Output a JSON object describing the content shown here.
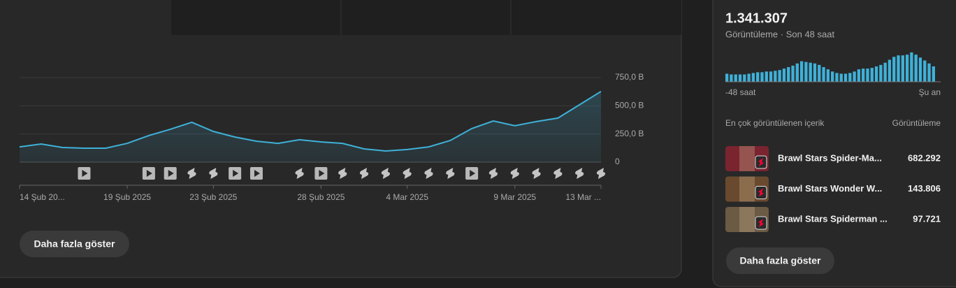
{
  "chart_data": {
    "type": "line",
    "categories": [
      "14 Şub 20...",
      null,
      null,
      null,
      null,
      "19 Şub 2025",
      null,
      null,
      null,
      "23 Şub 2025",
      null,
      null,
      null,
      null,
      "28 Şub 2025",
      null,
      null,
      null,
      "4 Mar 2025",
      null,
      null,
      null,
      null,
      "9 Mar 2025",
      null,
      null,
      null,
      "13 Mar ..."
    ],
    "values": [
      136,
      161,
      130,
      124,
      124,
      167,
      236,
      292,
      354,
      273,
      223,
      186,
      167,
      199,
      180,
      167,
      118,
      99,
      112,
      136,
      192,
      298,
      366,
      323,
      360,
      391,
      509,
      627
    ],
    "color": "#3fb1d9",
    "ylim": [
      0,
      750
    ],
    "yticks": [
      0,
      {
        "value": 250,
        "label": "250,0 B"
      },
      {
        "value": 500,
        "label": "500,0 B"
      },
      {
        "value": 750,
        "label": "750,0 B"
      }
    ],
    "grid": true,
    "uploads": [
      [
        3,
        "video"
      ],
      [
        6,
        "video"
      ],
      [
        7,
        "video"
      ],
      [
        8,
        "short"
      ],
      [
        9,
        "short"
      ],
      [
        10,
        "video"
      ],
      [
        11,
        "video"
      ],
      [
        13,
        "short"
      ],
      [
        14,
        "video"
      ],
      [
        15,
        "short"
      ],
      [
        16,
        "short"
      ],
      [
        17,
        "short"
      ],
      [
        18,
        "short"
      ],
      [
        19,
        "short"
      ],
      [
        20,
        "short"
      ],
      [
        21,
        "video"
      ],
      [
        22,
        "short"
      ],
      [
        23,
        "short"
      ],
      [
        24,
        "short"
      ],
      [
        25,
        "short"
      ],
      [
        26,
        "short"
      ],
      [
        27,
        "short"
      ]
    ]
  },
  "main_button": "Daha fazla göster",
  "sidebar": {
    "total": "1.341.307",
    "subtitle": "Görüntüleme · Son 48 saat",
    "chart": {
      "type": "bar",
      "color": "#3fb1d9",
      "values": [
        11,
        10,
        10,
        10,
        10,
        11,
        12,
        13,
        13,
        14,
        14,
        15,
        16,
        18,
        20,
        22,
        25,
        28,
        27,
        26,
        25,
        23,
        20,
        17,
        14,
        12,
        11,
        11,
        12,
        14,
        17,
        18,
        18,
        19,
        21,
        23,
        26,
        30,
        34,
        36,
        36,
        37,
        40,
        37,
        33,
        29,
        25,
        21
      ]
    },
    "start_label": "-48 saat",
    "end_label": "Şu an",
    "list_header": "En çok görüntülenen içerik",
    "list_value_header": "Görüntüleme",
    "items": [
      {
        "title": "Brawl Stars Spider-Ma...",
        "views": "682.292"
      },
      {
        "title": "Brawl Stars Wonder W...",
        "views": "143.806"
      },
      {
        "title": "Brawl Stars Spiderman ...",
        "views": "97.721"
      }
    ],
    "button": "Daha fazla göster"
  }
}
